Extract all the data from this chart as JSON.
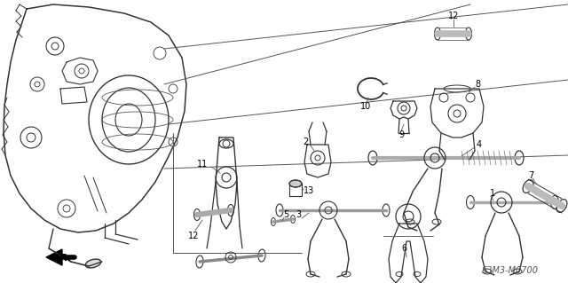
{
  "background_color": "#ffffff",
  "line_color": "#333333",
  "watermark": "S3M3-M0700",
  "direction_label": "FR.",
  "fig_width": 6.4,
  "fig_height": 3.19,
  "dpi": 100,
  "xlim": [
    0,
    640
  ],
  "ylim": [
    0,
    319
  ]
}
